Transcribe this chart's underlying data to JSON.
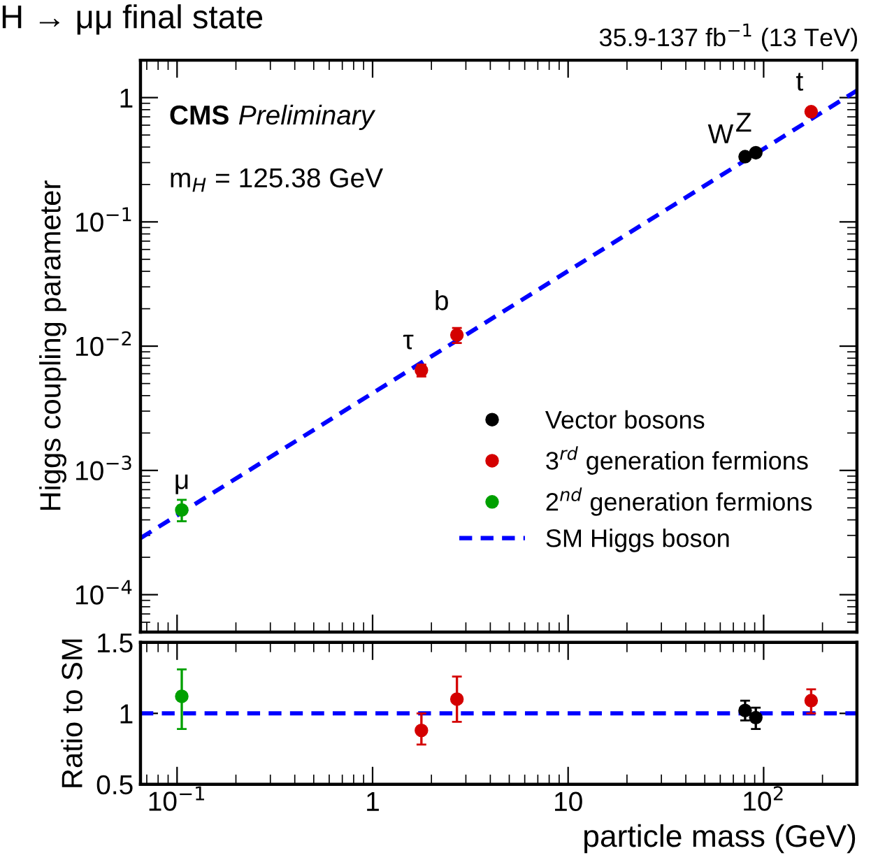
{
  "chart_data": [
    {
      "type": "scatter",
      "title": "H → μμ final state",
      "subtitle": "35.9-137 fb$^{−1}$ (13 TeV)",
      "ylabel": "Higgs coupling parameter",
      "log": "xy",
      "xlim": [
        0.065,
        300
      ],
      "ylim": [
        5e-05,
        2
      ],
      "yticks": [
        {
          "value": 0.0001,
          "label": "10$^{−4}$"
        },
        {
          "value": 0.001,
          "label": "10$^{−3}$"
        },
        {
          "value": 0.01,
          "label": "10$^{−2}$"
        },
        {
          "value": 0.1,
          "label": "10$^{−1}$"
        },
        1
      ],
      "tick_labels": "y",
      "marker": "circle",
      "grid": false,
      "legend": "bottom right",
      "series": [
        {
          "name": "Vector bosons",
          "color": "#000000",
          "x": [
            80.4,
            91.2
          ],
          "values": [
            0.335,
            0.36
          ],
          "errors": [
            0.015,
            0.015
          ]
        },
        {
          "name": "3$^{rd}$ generation fermions",
          "color": "#d40000",
          "x": [
            1.777,
            2.7,
            175
          ],
          "values": [
            0.0064,
            0.0123,
            0.77
          ],
          "errors": [
            0.0007,
            0.0017,
            0.04
          ]
        },
        {
          "name": "2$^{nd}$ generation fermions",
          "color": "#00a000",
          "x": [
            0.1057
          ],
          "values": [
            0.00048
          ],
          "errors": [
            [
              0.00039,
              0.00058
            ]
          ]
        },
        {
          "name": "SM Higgs boson",
          "type": "line",
          "marker": "none",
          "line_style": "dashed",
          "color": "#0000ff",
          "x": [
            0.065,
            300
          ],
          "values": [
            0.000285,
            1.14
          ]
        }
      ],
      "annotations": [
        "CMS",
        "Preliminary",
        "m$_{H}$ = 125.38 GeV",
        {
          "text": "μ",
          "x": 0.1057,
          "y": 0.00048
        },
        {
          "text": "τ",
          "x": 1.777,
          "y": 0.0064
        },
        {
          "text": "b",
          "x": 2.7,
          "y": 0.0123
        },
        {
          "text": "W",
          "x": 80.4,
          "y": 0.335
        },
        {
          "text": "Z",
          "x": 91.2,
          "y": 0.36
        },
        {
          "text": "t",
          "x": 175,
          "y": 0.77
        }
      ]
    },
    {
      "type": "scatter",
      "xlabel": "particle mass (GeV)",
      "ylabel": "Ratio to SM",
      "log": "x",
      "xlim": [
        0.065,
        300
      ],
      "ylim": [
        0.5,
        1.5
      ],
      "xticks": [
        {
          "value": 0.1,
          "label": "10$^{−1}$"
        },
        1,
        10,
        {
          "value": 100,
          "label": "10$^{2}$"
        }
      ],
      "yticks": [
        0.5,
        1,
        1.5
      ],
      "marker": "circle",
      "grid": false,
      "ref_lines": [
        {
          "axis": "y",
          "value": 1,
          "color": "#0000ff",
          "line_style": "dashed"
        }
      ],
      "series": [
        {
          "color": "#000000",
          "x": [
            80.4,
            91.2
          ],
          "values": [
            1.02,
            0.97
          ],
          "errors": [
            [
              0.95,
              1.09
            ],
            [
              0.89,
              1.04
            ]
          ]
        },
        {
          "color": "#d40000",
          "x": [
            1.777,
            2.7,
            175
          ],
          "values": [
            0.88,
            1.1,
            1.09
          ],
          "errors": [
            [
              0.78,
              1.0
            ],
            [
              0.94,
              1.26
            ],
            [
              1.0,
              1.17
            ]
          ]
        },
        {
          "color": "#00a000",
          "x": [
            0.1057
          ],
          "values": [
            1.12
          ],
          "errors": [
            [
              0.89,
              1.31
            ]
          ]
        }
      ]
    }
  ]
}
